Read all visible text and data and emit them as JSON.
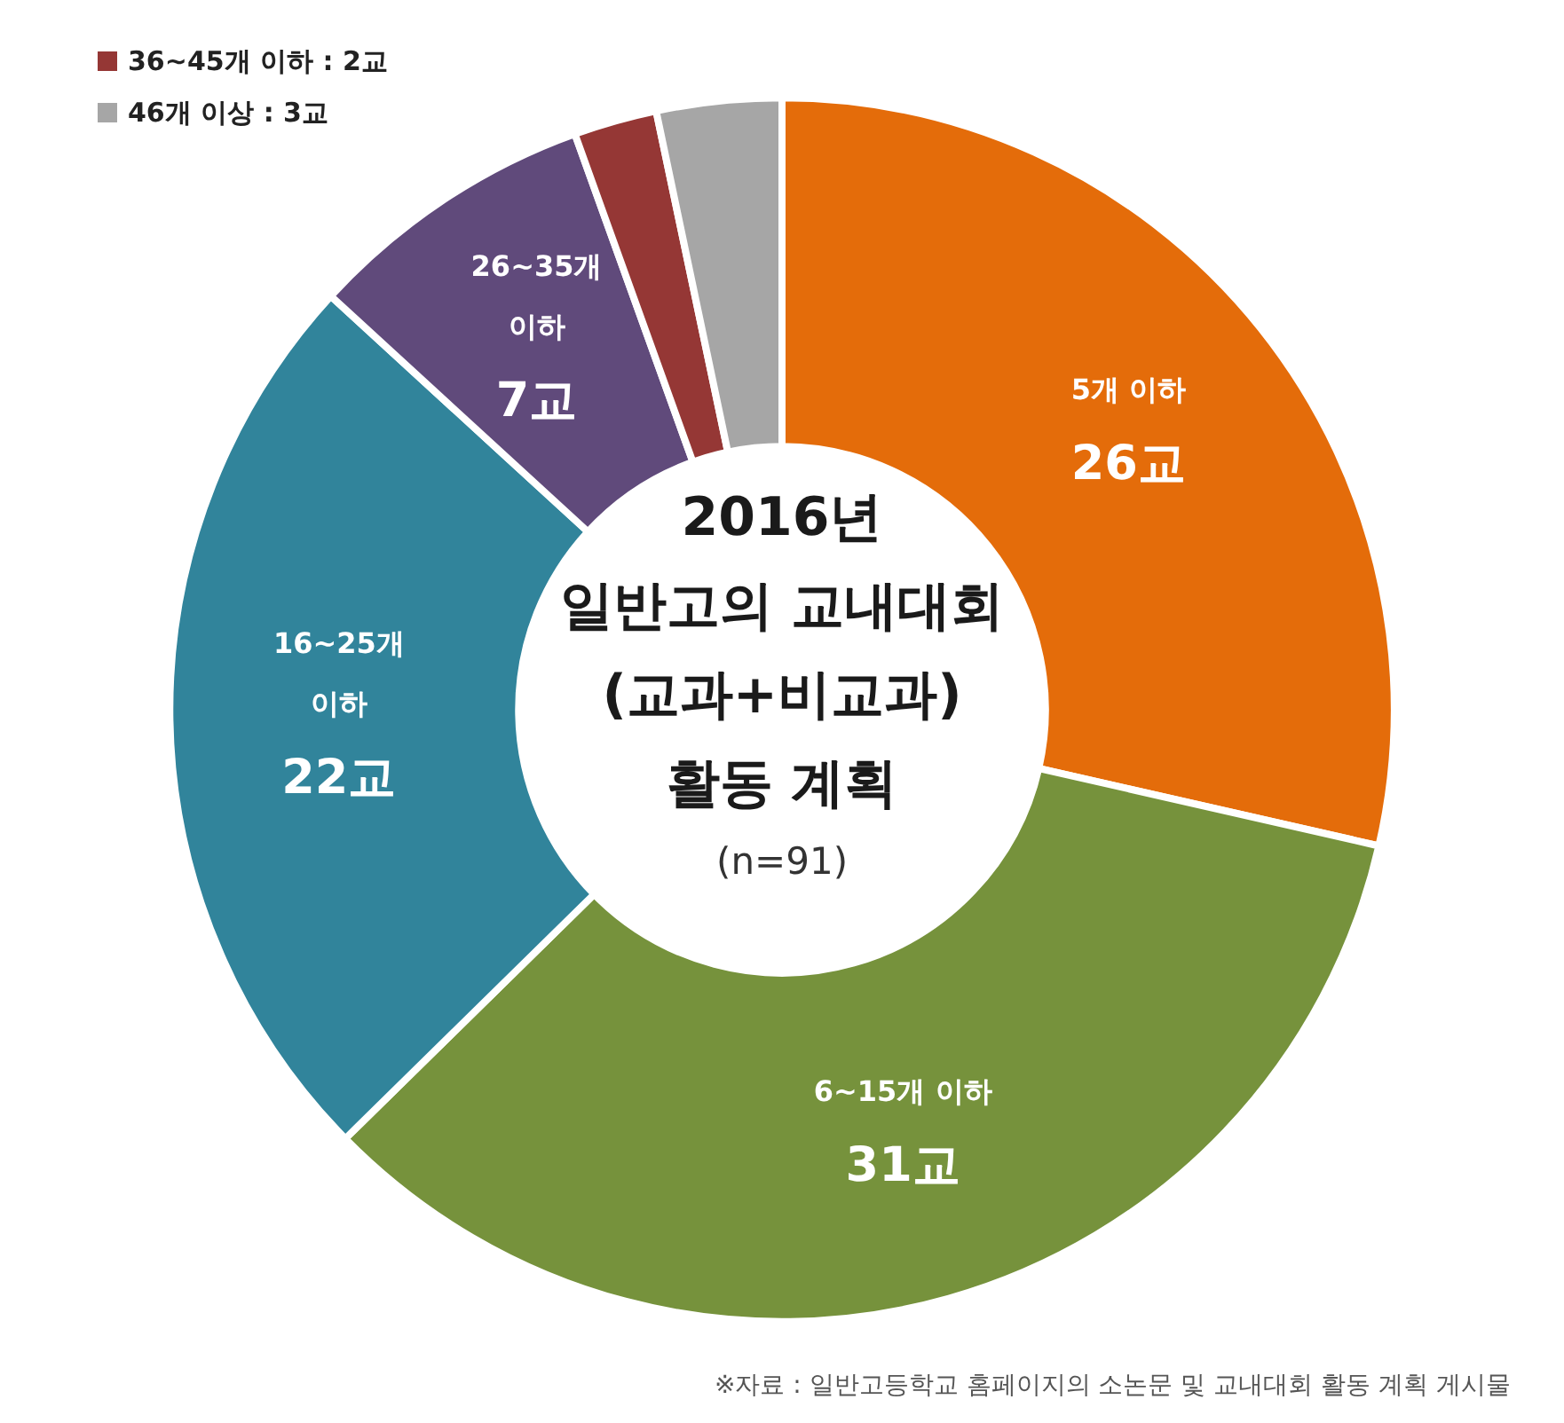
{
  "chart_data": {
    "type": "donut",
    "title": "2016년\n일반고의 교내대회\n(교과+비교과)\n활동 계획",
    "subtitle": "(n=91)",
    "categories": [
      "5개 이하",
      "6~15개 이하",
      "16~25개 이하",
      "26~35개 이하",
      "36~45개 이하",
      "46개 이상"
    ],
    "values": [
      26,
      31,
      22,
      7,
      2,
      3
    ],
    "value_labels": [
      "26교",
      "31교",
      "22교",
      "7교",
      "2교",
      "3교"
    ],
    "colors": [
      "#e46c0a",
      "#76923c",
      "#31849b",
      "#604a7b",
      "#953735",
      "#a6a6a6"
    ],
    "legend": "top left",
    "annotations": [
      "※자료 : 일반고등학교 홈페이지의 소논문 및 교내대회 활동 계획 게시물"
    ]
  }
}
